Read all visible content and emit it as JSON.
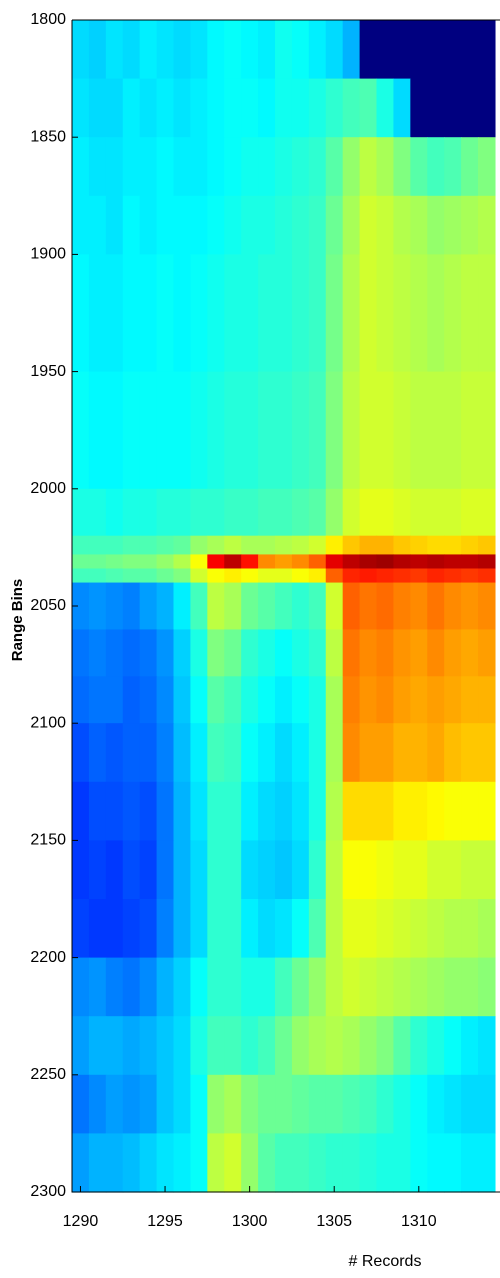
{
  "chart_data": {
    "type": "heatmap",
    "colormap": "jet",
    "xlabel": "# Records",
    "ylabel": "Range Bins",
    "x": [
      1290,
      1291,
      1292,
      1293,
      1294,
      1295,
      1296,
      1297,
      1298,
      1299,
      1300,
      1301,
      1302,
      1303,
      1304,
      1305,
      1306,
      1307,
      1308,
      1309,
      1310,
      1311,
      1312,
      1313,
      1314
    ],
    "ybins": [
      1800,
      1825,
      1850,
      1875,
      1900,
      1950,
      2000,
      2020,
      2028,
      2034,
      2040,
      2060,
      2080,
      2100,
      2125,
      2150,
      2175,
      2200,
      2225,
      2250,
      2275,
      2300
    ],
    "values": [
      [
        34,
        33,
        35,
        34,
        36,
        35,
        34,
        35,
        37,
        38,
        37,
        36,
        39,
        38,
        36,
        34,
        30,
        0,
        0,
        0,
        0,
        0,
        0,
        0,
        0
      ],
      [
        35,
        34,
        34,
        36,
        35,
        36,
        35,
        36,
        37,
        38,
        38,
        37,
        39,
        39,
        40,
        42,
        44,
        45,
        40,
        34,
        0,
        0,
        0,
        0,
        0
      ],
      [
        36,
        35,
        35,
        36,
        36,
        37,
        36,
        36,
        37,
        38,
        39,
        39,
        40,
        41,
        42,
        46,
        52,
        56,
        54,
        50,
        46,
        44,
        45,
        48,
        50
      ],
      [
        36,
        36,
        35,
        37,
        36,
        37,
        37,
        37,
        38,
        39,
        40,
        40,
        41,
        42,
        43,
        48,
        54,
        58,
        57,
        55,
        54,
        52,
        53,
        54,
        55
      ],
      [
        37,
        36,
        36,
        37,
        37,
        38,
        37,
        38,
        39,
        40,
        40,
        41,
        41,
        42,
        43,
        49,
        55,
        58,
        57,
        56,
        55,
        54,
        55,
        56,
        56
      ],
      [
        38,
        37,
        37,
        38,
        38,
        38,
        38,
        39,
        40,
        41,
        41,
        42,
        42,
        43,
        44,
        50,
        56,
        58,
        58,
        57,
        56,
        56,
        56,
        57,
        57
      ],
      [
        40,
        40,
        39,
        40,
        40,
        41,
        41,
        42,
        42,
        43,
        43,
        44,
        44,
        45,
        46,
        52,
        58,
        60,
        60,
        59,
        58,
        58,
        58,
        59,
        59
      ],
      [
        44,
        44,
        44,
        45,
        45,
        46,
        47,
        52,
        54,
        56,
        54,
        54,
        55,
        56,
        58,
        64,
        68,
        70,
        70,
        68,
        67,
        66,
        66,
        67,
        68
      ],
      [
        48,
        48,
        49,
        50,
        50,
        52,
        55,
        62,
        88,
        94,
        86,
        74,
        72,
        74,
        78,
        90,
        94,
        96,
        97,
        95,
        94,
        95,
        94,
        94,
        95
      ],
      [
        44,
        44,
        45,
        46,
        46,
        48,
        50,
        58,
        62,
        64,
        62,
        60,
        60,
        62,
        64,
        78,
        84,
        85,
        84,
        83,
        82,
        84,
        83,
        82,
        83
      ],
      [
        26,
        27,
        26,
        25,
        28,
        30,
        36,
        44,
        56,
        54,
        48,
        46,
        44,
        42,
        44,
        58,
        78,
        76,
        77,
        75,
        74,
        76,
        74,
        73,
        74
      ],
      [
        24,
        25,
        24,
        23,
        24,
        27,
        33,
        40,
        50,
        48,
        42,
        40,
        38,
        40,
        42,
        56,
        76,
        74,
        75,
        73,
        72,
        74,
        72,
        71,
        72
      ],
      [
        23,
        24,
        24,
        22,
        23,
        26,
        32,
        38,
        46,
        44,
        40,
        38,
        36,
        38,
        40,
        54,
        75,
        73,
        74,
        72,
        71,
        72,
        71,
        70,
        70
      ],
      [
        20,
        22,
        21,
        22,
        22,
        25,
        31,
        36,
        44,
        43,
        38,
        36,
        34,
        36,
        40,
        54,
        74,
        72,
        72,
        70,
        70,
        71,
        69,
        68,
        68
      ],
      [
        18,
        20,
        20,
        21,
        20,
        24,
        30,
        35,
        42,
        42,
        36,
        34,
        33,
        35,
        40,
        55,
        66,
        66,
        66,
        64,
        64,
        63,
        62,
        62,
        62
      ],
      [
        18,
        19,
        18,
        20,
        19,
        24,
        30,
        34,
        42,
        42,
        34,
        33,
        32,
        34,
        42,
        56,
        62,
        62,
        61,
        60,
        60,
        58,
        58,
        57,
        57
      ],
      [
        19,
        18,
        18,
        19,
        20,
        25,
        30,
        34,
        42,
        42,
        36,
        34,
        35,
        38,
        45,
        56,
        60,
        60,
        59,
        58,
        57,
        56,
        55,
        55,
        54
      ],
      [
        26,
        27,
        25,
        24,
        26,
        30,
        33,
        38,
        42,
        42,
        40,
        40,
        44,
        48,
        52,
        56,
        58,
        57,
        56,
        55,
        54,
        53,
        52,
        52,
        51
      ],
      [
        28,
        30,
        30,
        29,
        30,
        32,
        34,
        40,
        44,
        44,
        42,
        44,
        48,
        52,
        54,
        55,
        54,
        52,
        50,
        46,
        42,
        40,
        38,
        36,
        35
      ],
      [
        24,
        26,
        28,
        27,
        28,
        32,
        34,
        38,
        52,
        54,
        50,
        48,
        48,
        47,
        46,
        46,
        45,
        44,
        42,
        40,
        38,
        36,
        35,
        34,
        34
      ],
      [
        28,
        30,
        30,
        31,
        33,
        35,
        36,
        38,
        56,
        58,
        52,
        46,
        44,
        44,
        43,
        42,
        42,
        41,
        40,
        40,
        38,
        37,
        37,
        36,
        36
      ]
    ],
    "zlim": [
      0,
      100
    ],
    "xlim": [
      1289.5,
      1314.8
    ],
    "ylim": [
      1800,
      2300
    ],
    "y_reversed": true,
    "xticks": [
      1290,
      1295,
      1300,
      1305,
      1310
    ],
    "yticks": [
      1800,
      1850,
      1900,
      1950,
      2000,
      2050,
      2100,
      2150,
      2200,
      2250,
      2300
    ]
  }
}
